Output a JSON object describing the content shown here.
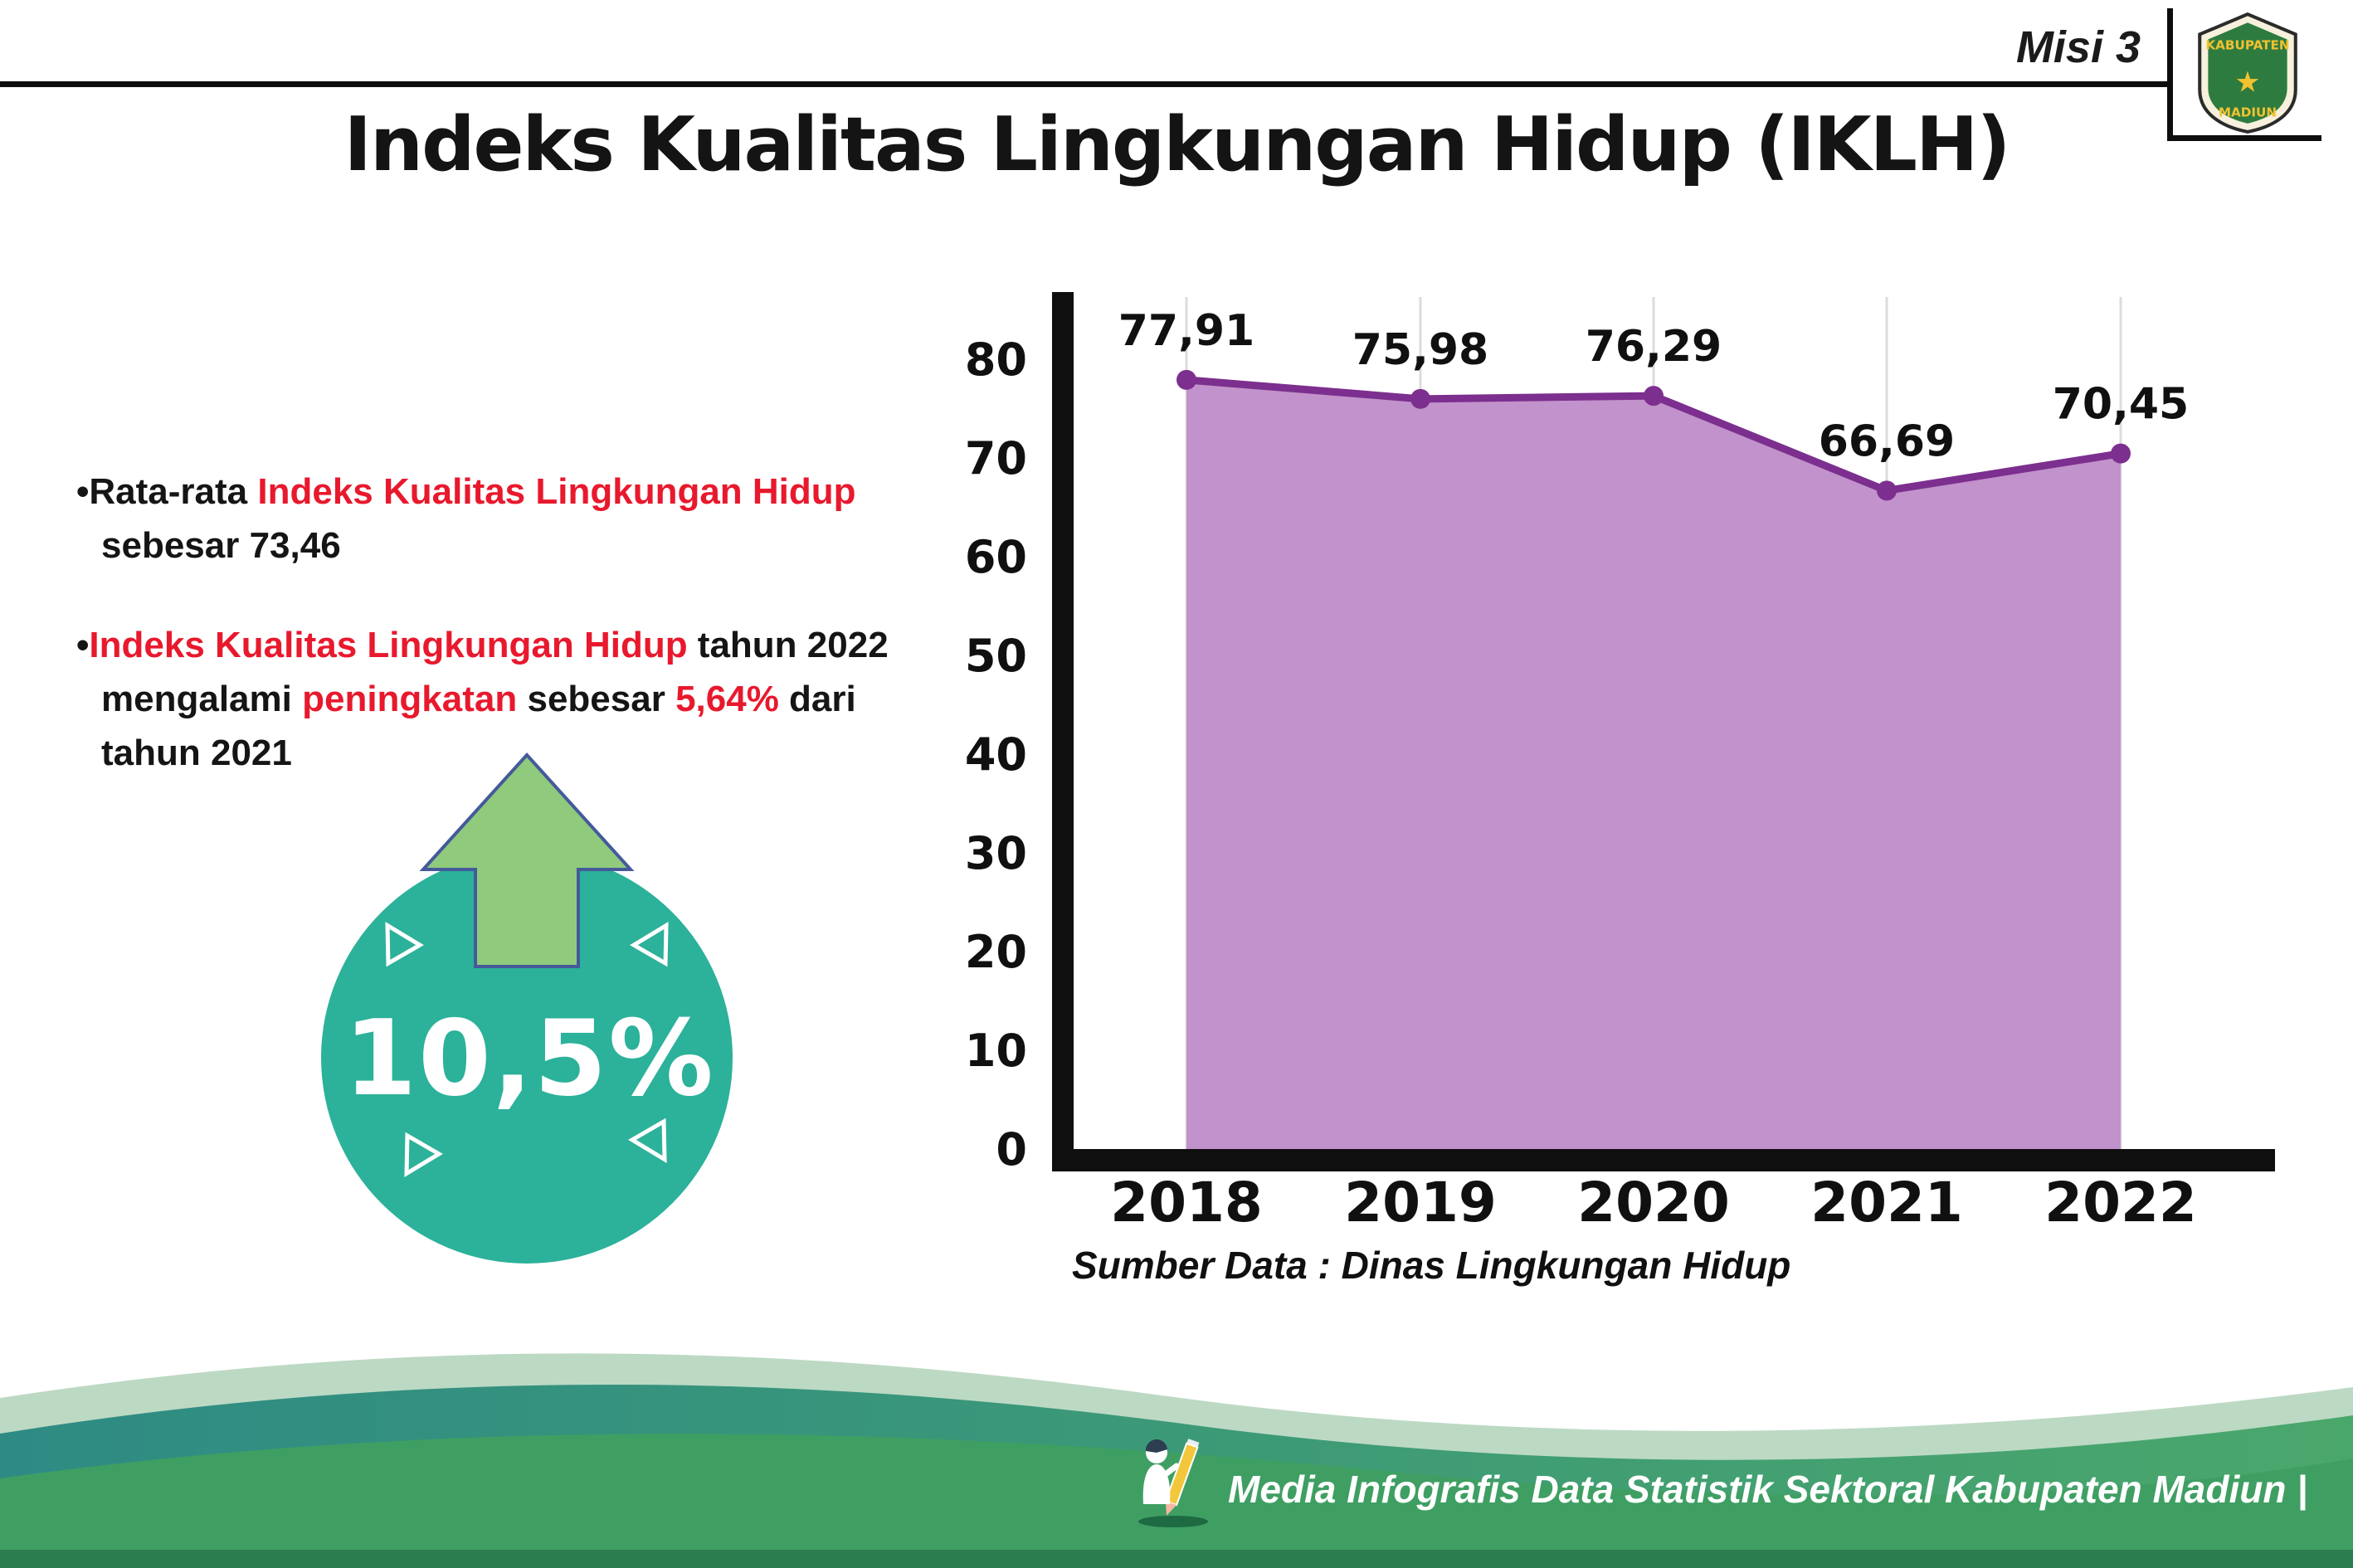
{
  "header": {
    "misi": "Misi 3",
    "title": "Indeks Kualitas Lingkungan Hidup (IKLH)",
    "logo": {
      "top": "KABUPATEN",
      "bottom": "MADIUN",
      "star": "★"
    }
  },
  "bullets": {
    "glyph": "•",
    "b1": {
      "p1": "Rata-rata ",
      "p2": "Indeks Kualitas Lingkungan Hidup",
      "p3": " sebesar 73,46"
    },
    "b2": {
      "p1": "Indeks Kualitas Lingkungan Hidup",
      "p2": " tahun 2022 mengalami ",
      "p3": "peningkatan",
      "p4": " sebesar ",
      "p5": "5,64%",
      "p6": " dari tahun 2021"
    }
  },
  "badge": {
    "value": "10,5%"
  },
  "chart_data": {
    "type": "area",
    "categories": [
      "2018",
      "2019",
      "2020",
      "2021",
      "2022"
    ],
    "values": [
      77.91,
      75.98,
      76.29,
      66.69,
      70.45
    ],
    "point_labels": [
      "77,91",
      "75,98",
      "76,29",
      "66,69",
      "70,45"
    ],
    "yticks": [
      0,
      10,
      20,
      30,
      40,
      50,
      60,
      70,
      80
    ],
    "ylim": [
      0,
      86
    ],
    "xlabel": "",
    "ylabel": "",
    "grid": "vertical-light",
    "legend": "none",
    "area_color": "#c192cb",
    "line_color": "#7c2f8e",
    "source": "Sumber Data : Dinas Lingkungan Hidup"
  },
  "footer": {
    "caption": "Media Infografis Data Statistik Sektoral Kabupaten Madiun |"
  },
  "colors": {
    "red": "#e8192d",
    "teal": "#2cb19a",
    "arrow_green": "#8fca7d",
    "footer_sage": "#bcd9c4",
    "footer_teal": "#2e8b84",
    "footer_teal2": "#4aa76b",
    "footer_green": "#3f9f63",
    "footer_dark": "#2b7c4e"
  }
}
